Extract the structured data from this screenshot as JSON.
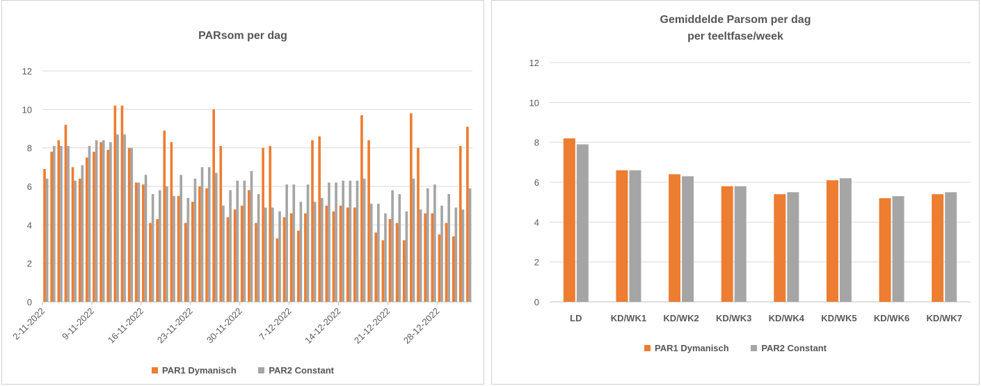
{
  "colors": {
    "dynamic": "#ED7D31",
    "constant": "#A5A5A5",
    "grid": "#D9D9D9",
    "axis": "#BFBFBF",
    "text": "#595959"
  },
  "chart_data": [
    {
      "type": "bar",
      "title": "PARsom per dag",
      "ylim": [
        0,
        12
      ],
      "yticks": [
        0,
        2,
        4,
        6,
        8,
        10,
        12
      ],
      "grid": true,
      "legend": "bottom",
      "xtick_labels": [
        "2-11-2022",
        "9-11-2022",
        "16-11-2022",
        "23-11-2022",
        "30-11-2022",
        "7-12-2022",
        "14-12-2022",
        "21-12-2022",
        "28-12-2022"
      ],
      "xtick_every": 7,
      "series": [
        {
          "name": "PAR1 Dymanisch",
          "values": [
            6.9,
            7.8,
            8.4,
            9.2,
            7.0,
            6.4,
            7.5,
            7.8,
            8.3,
            7.9,
            10.2,
            10.2,
            8.0,
            6.2,
            6.1,
            4.1,
            4.3,
            8.9,
            8.3,
            5.5,
            4.1,
            5.2,
            6.0,
            5.9,
            10.0,
            8.1,
            4.4,
            4.8,
            5.0,
            5.8,
            4.1,
            8.0,
            8.1,
            3.3,
            4.4,
            4.6,
            3.7,
            4.6,
            8.4,
            8.6,
            5.0,
            4.7,
            5.0,
            4.9,
            4.9,
            9.7,
            8.4,
            3.6,
            3.2,
            4.3,
            4.1,
            3.2,
            9.8,
            8.0,
            4.6,
            4.6,
            3.5,
            4.1,
            3.4,
            8.1,
            9.1
          ]
        },
        {
          "name": "PAR2 Constant",
          "values": [
            6.4,
            8.1,
            8.1,
            8.1,
            6.3,
            7.1,
            8.1,
            8.4,
            8.4,
            8.3,
            8.7,
            8.7,
            8.0,
            6.2,
            6.6,
            5.6,
            5.8,
            6.0,
            5.5,
            6.6,
            5.4,
            6.4,
            7.0,
            7.0,
            6.7,
            5.0,
            5.8,
            6.3,
            6.3,
            6.8,
            5.6,
            4.9,
            4.9,
            4.7,
            6.1,
            6.1,
            5.2,
            6.1,
            5.2,
            5.4,
            6.2,
            6.2,
            6.3,
            6.3,
            6.3,
            6.4,
            5.1,
            5.1,
            4.6,
            5.8,
            5.6,
            4.7,
            6.4,
            4.8,
            5.9,
            6.1,
            5.0,
            5.6,
            4.9,
            4.8,
            5.9
          ]
        }
      ]
    },
    {
      "type": "bar",
      "title": "Gemiddelde Parsom per dag",
      "subtitle": "per teeltfase/week",
      "ylim": [
        0,
        12
      ],
      "yticks": [
        0,
        2,
        4,
        6,
        8,
        10,
        12
      ],
      "grid": true,
      "legend": "bottom",
      "categories": [
        "LD",
        "KD/WK1",
        "KD/WK2",
        "KD/WK3",
        "KD/WK4",
        "KD/WK5",
        "KD/WK6",
        "KD/WK7"
      ],
      "series": [
        {
          "name": "PAR1 Dymanisch",
          "values": [
            8.2,
            6.6,
            6.4,
            5.8,
            5.4,
            6.1,
            5.2,
            5.4
          ]
        },
        {
          "name": "PAR2 Constant",
          "values": [
            7.9,
            6.6,
            6.3,
            5.8,
            5.5,
            6.2,
            5.3,
            5.5
          ]
        }
      ]
    }
  ]
}
